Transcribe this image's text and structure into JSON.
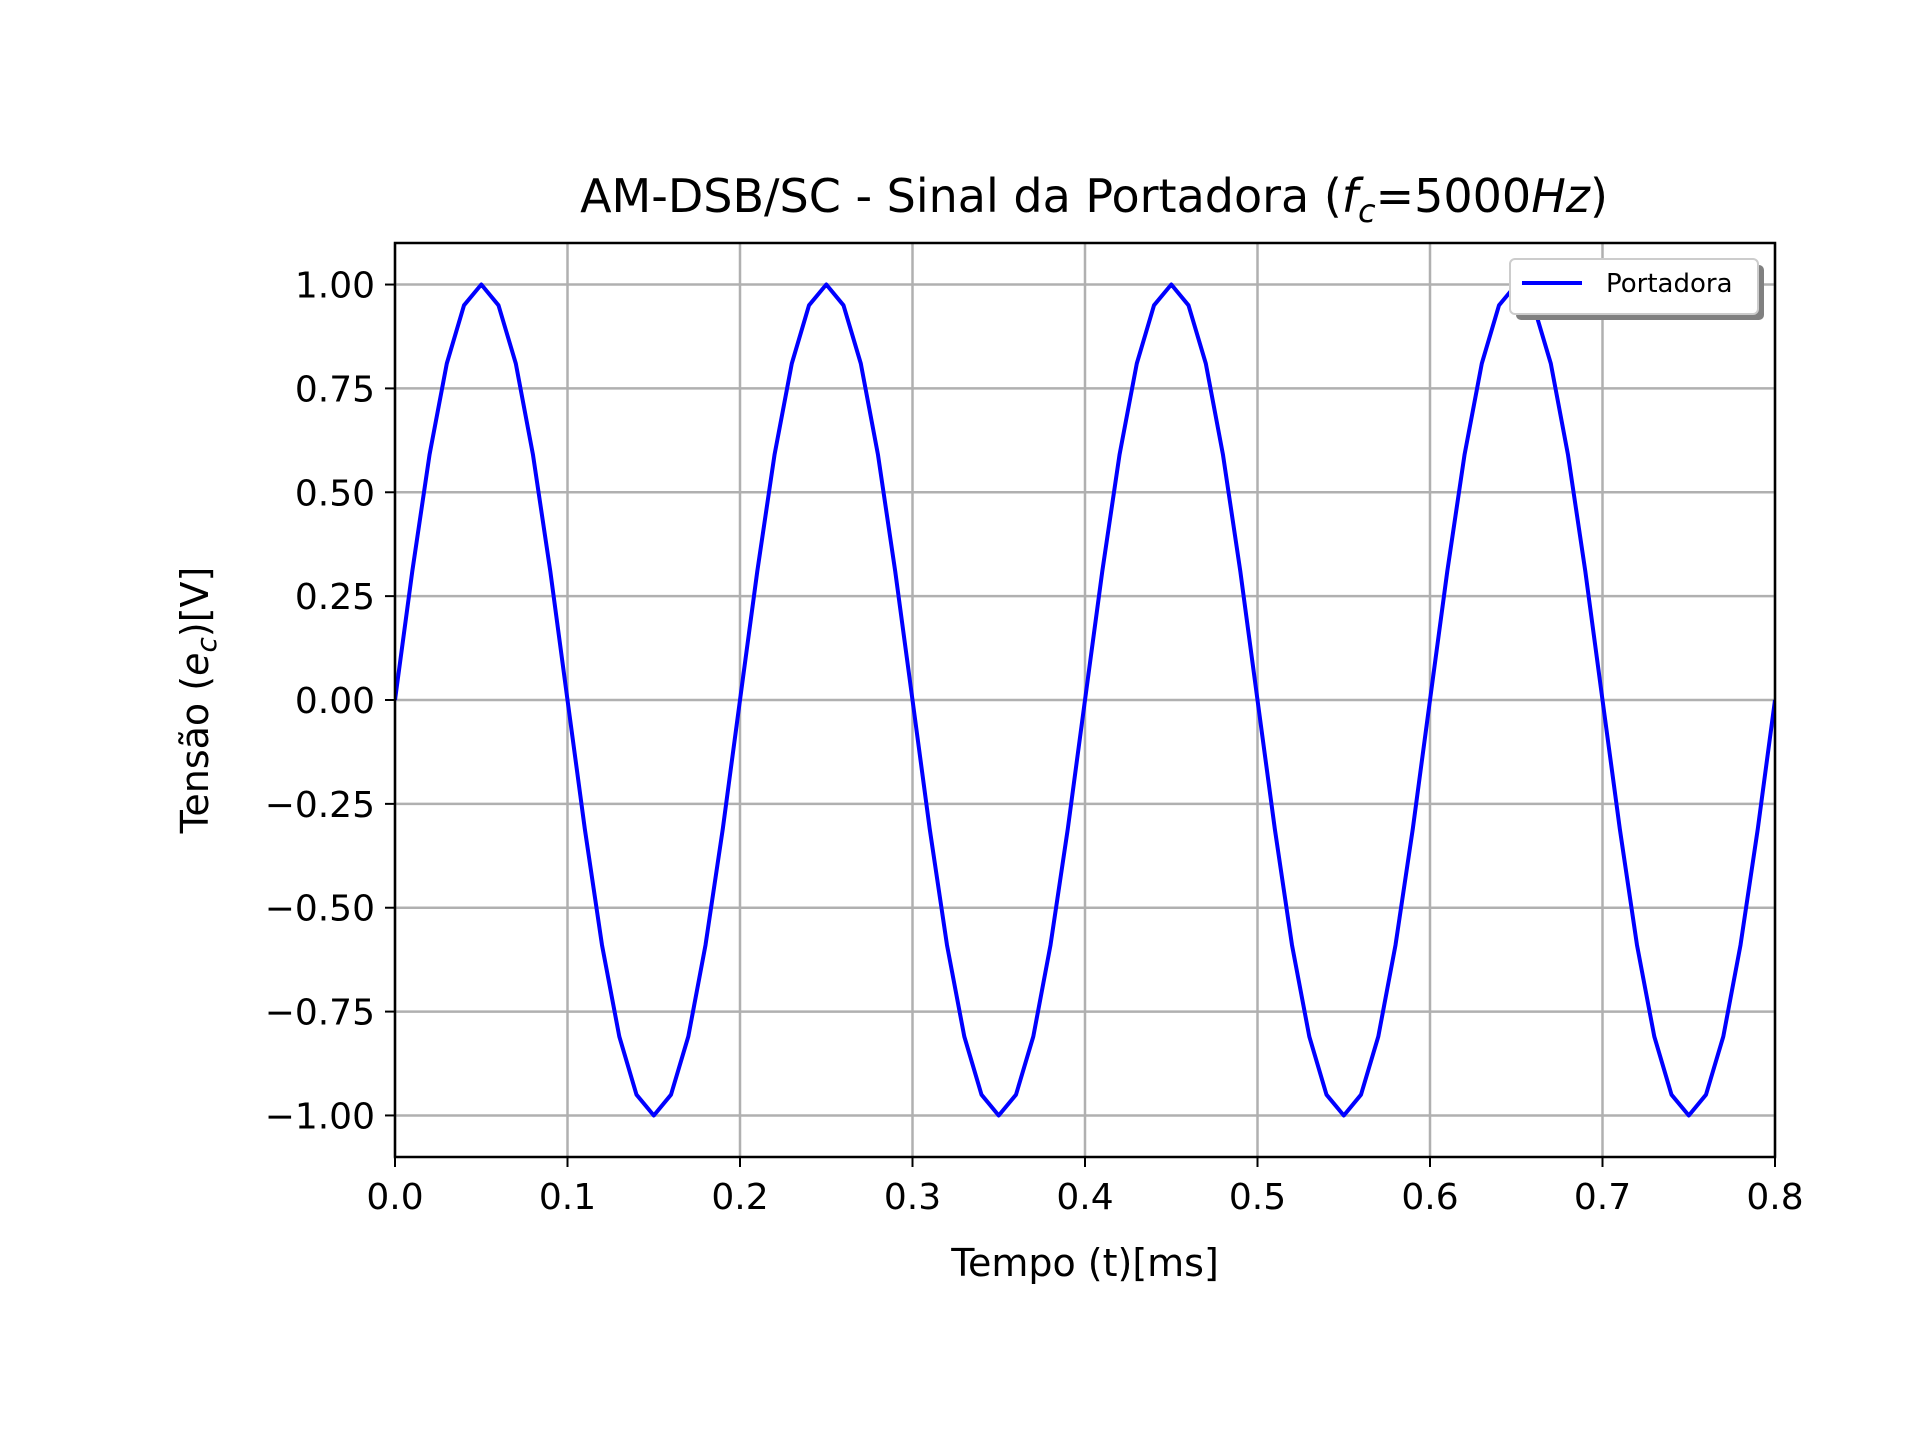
{
  "chart_data": {
    "type": "line",
    "title": "AM-DSB/SC - Sinal da Portadora (",
    "title_math": {
      "f": "f",
      "sub": "c",
      "rest": "=5000",
      "unit": "Hz",
      "close": ")"
    },
    "xlabel": "Tempo (t)[ms]",
    "ylabel_parts": {
      "prefix": "Tensão (",
      "var": "e",
      "sub": "c",
      "suffix": ")[V]"
    },
    "xlim": [
      0.0,
      0.8
    ],
    "ylim": [
      -1.1,
      1.1
    ],
    "x_ticks": [
      0.0,
      0.1,
      0.2,
      0.3,
      0.4,
      0.5,
      0.6,
      0.7,
      0.8
    ],
    "x_tick_labels": [
      "0.0",
      "0.1",
      "0.2",
      "0.3",
      "0.4",
      "0.5",
      "0.6",
      "0.7",
      "0.8"
    ],
    "y_ticks": [
      1.0,
      0.75,
      0.5,
      0.25,
      0.0,
      -0.25,
      -0.5,
      -0.75,
      -1.0
    ],
    "y_tick_labels": [
      "1.00",
      "0.75",
      "0.50",
      "0.25",
      "0.00",
      "−0.25",
      "−0.50",
      "−0.75",
      "−1.00"
    ],
    "grid": true,
    "legend_position": "top-right",
    "series": [
      {
        "name": "Portadora",
        "color": "#0000ff",
        "x": [
          0.0,
          0.01,
          0.02,
          0.03,
          0.04,
          0.05,
          0.06,
          0.07,
          0.08,
          0.09,
          0.1,
          0.11,
          0.12,
          0.13,
          0.14,
          0.15,
          0.16,
          0.17,
          0.18,
          0.19,
          0.2,
          0.21,
          0.22,
          0.23,
          0.24,
          0.25,
          0.26,
          0.27,
          0.28,
          0.29,
          0.3,
          0.31,
          0.32,
          0.33,
          0.34,
          0.35,
          0.36,
          0.37,
          0.38,
          0.39,
          0.4,
          0.41,
          0.42,
          0.43,
          0.44,
          0.45,
          0.46,
          0.47,
          0.48,
          0.49,
          0.5,
          0.51,
          0.52,
          0.53,
          0.54,
          0.55,
          0.56,
          0.57,
          0.58,
          0.59,
          0.6,
          0.61,
          0.62,
          0.63,
          0.64,
          0.65,
          0.66,
          0.67,
          0.68,
          0.69,
          0.7,
          0.71,
          0.72,
          0.73,
          0.74,
          0.75,
          0.76,
          0.77,
          0.78,
          0.79,
          0.8
        ],
        "y": [
          0.0,
          0.31,
          0.59,
          0.81,
          0.95,
          1.0,
          0.95,
          0.81,
          0.59,
          0.31,
          0.0,
          -0.31,
          -0.59,
          -0.81,
          -0.95,
          -1.0,
          -0.95,
          -0.81,
          -0.59,
          -0.31,
          0.0,
          0.31,
          0.59,
          0.81,
          0.95,
          1.0,
          0.95,
          0.81,
          0.59,
          0.31,
          0.0,
          -0.31,
          -0.59,
          -0.81,
          -0.95,
          -1.0,
          -0.95,
          -0.81,
          -0.59,
          -0.31,
          0.0,
          0.31,
          0.59,
          0.81,
          0.95,
          1.0,
          0.95,
          0.81,
          0.59,
          0.31,
          0.0,
          -0.31,
          -0.59,
          -0.81,
          -0.95,
          -1.0,
          -0.95,
          -0.81,
          -0.59,
          -0.31,
          0.0,
          0.31,
          0.59,
          0.81,
          0.95,
          1.0,
          0.95,
          0.81,
          0.59,
          0.31,
          0.0,
          -0.31,
          -0.59,
          -0.81,
          -0.95,
          -1.0,
          -0.95,
          -0.81,
          -0.59,
          -0.31,
          0.0
        ]
      }
    ]
  }
}
